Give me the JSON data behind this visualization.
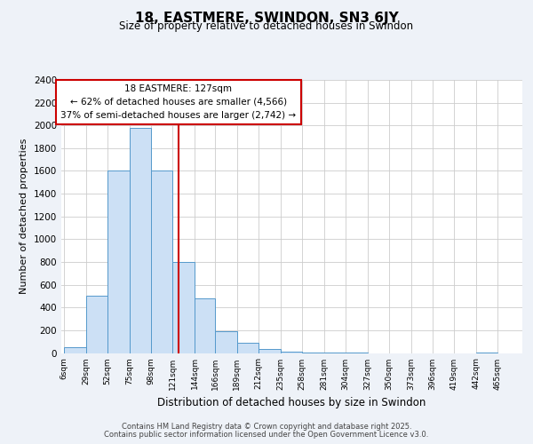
{
  "title": "18, EASTMERE, SWINDON, SN3 6JY",
  "subtitle": "Size of property relative to detached houses in Swindon",
  "xlabel": "Distribution of detached houses by size in Swindon",
  "ylabel": "Number of detached properties",
  "footer_line1": "Contains HM Land Registry data © Crown copyright and database right 2025.",
  "footer_line2": "Contains public sector information licensed under the Open Government Licence v3.0.",
  "bin_labels": [
    "6sqm",
    "29sqm",
    "52sqm",
    "75sqm",
    "98sqm",
    "121sqm",
    "144sqm",
    "166sqm",
    "189sqm",
    "212sqm",
    "235sqm",
    "258sqm",
    "281sqm",
    "304sqm",
    "327sqm",
    "350sqm",
    "373sqm",
    "396sqm",
    "419sqm",
    "442sqm",
    "465sqm"
  ],
  "bar_values": [
    50,
    500,
    1600,
    1975,
    1600,
    800,
    480,
    190,
    90,
    35,
    10,
    5,
    2,
    1,
    0,
    0,
    0,
    0,
    0,
    5
  ],
  "bar_color": "#cce0f5",
  "bar_edge_color": "#5599cc",
  "vline_x": 127,
  "vline_color": "#cc0000",
  "annotation_title": "18 EASTMERE: 127sqm",
  "annotation_line1": "← 62% of detached houses are smaller (4,566)",
  "annotation_line2": "37% of semi-detached houses are larger (2,742) →",
  "annotation_box_color": "#ffffff",
  "annotation_box_edge": "#cc0000",
  "ylim": [
    0,
    2400
  ],
  "yticks": [
    0,
    200,
    400,
    600,
    800,
    1000,
    1200,
    1400,
    1600,
    1800,
    2000,
    2200,
    2400
  ],
  "background_color": "#eef2f8",
  "plot_bg_color": "#ffffff",
  "grid_color": "#cccccc"
}
